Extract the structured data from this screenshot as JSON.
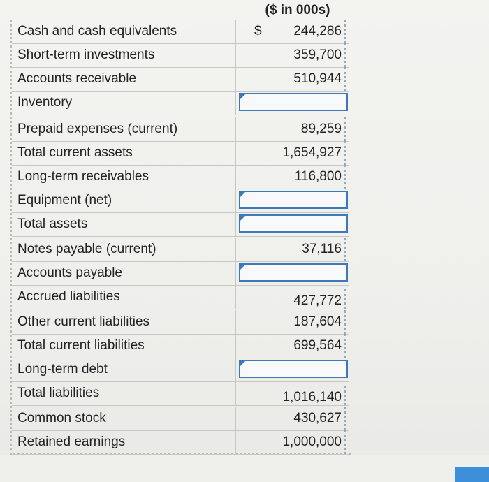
{
  "header": {
    "units_label": "($ in 000s)"
  },
  "rows": [
    {
      "label": "Cash and cash equivalents",
      "currency": "$",
      "value": "244,286"
    },
    {
      "label": "Short-term investments",
      "currency": "",
      "value": "359,700"
    },
    {
      "label": "Accounts receivable",
      "currency": "",
      "value": "510,944"
    },
    {
      "label": "Inventory",
      "currency": "",
      "value": ""
    },
    {
      "label": "Prepaid expenses (current)",
      "currency": "",
      "value": "89,259"
    },
    {
      "label": "Total current assets",
      "currency": "",
      "value": "1,654,927"
    },
    {
      "label": "Long-term receivables",
      "currency": "",
      "value": "116,800"
    },
    {
      "label": "Equipment (net)",
      "currency": "",
      "value": ""
    },
    {
      "label": "Total assets",
      "currency": "",
      "value": ""
    },
    {
      "label": "Notes payable (current)",
      "currency": "",
      "value": "37,116"
    },
    {
      "label": "Accounts payable",
      "currency": "",
      "value": ""
    },
    {
      "label": "Accrued liabilities",
      "currency": "",
      "value": "427,772"
    },
    {
      "label": "Other current liabilities",
      "currency": "",
      "value": "187,604"
    },
    {
      "label": "Total current liabilities",
      "currency": "",
      "value": "699,564"
    },
    {
      "label": "Long-term debt",
      "currency": "",
      "value": ""
    },
    {
      "label": "Total liabilities",
      "currency": "",
      "value": "1,016,140"
    },
    {
      "label": "Common stock",
      "currency": "",
      "value": "430,627"
    },
    {
      "label": "Retained earnings",
      "currency": "",
      "value": "1,000,000"
    }
  ],
  "colors": {
    "input_border": "#3d79ba",
    "button": "#3d8fd9",
    "grid": "#c7c7c4"
  }
}
